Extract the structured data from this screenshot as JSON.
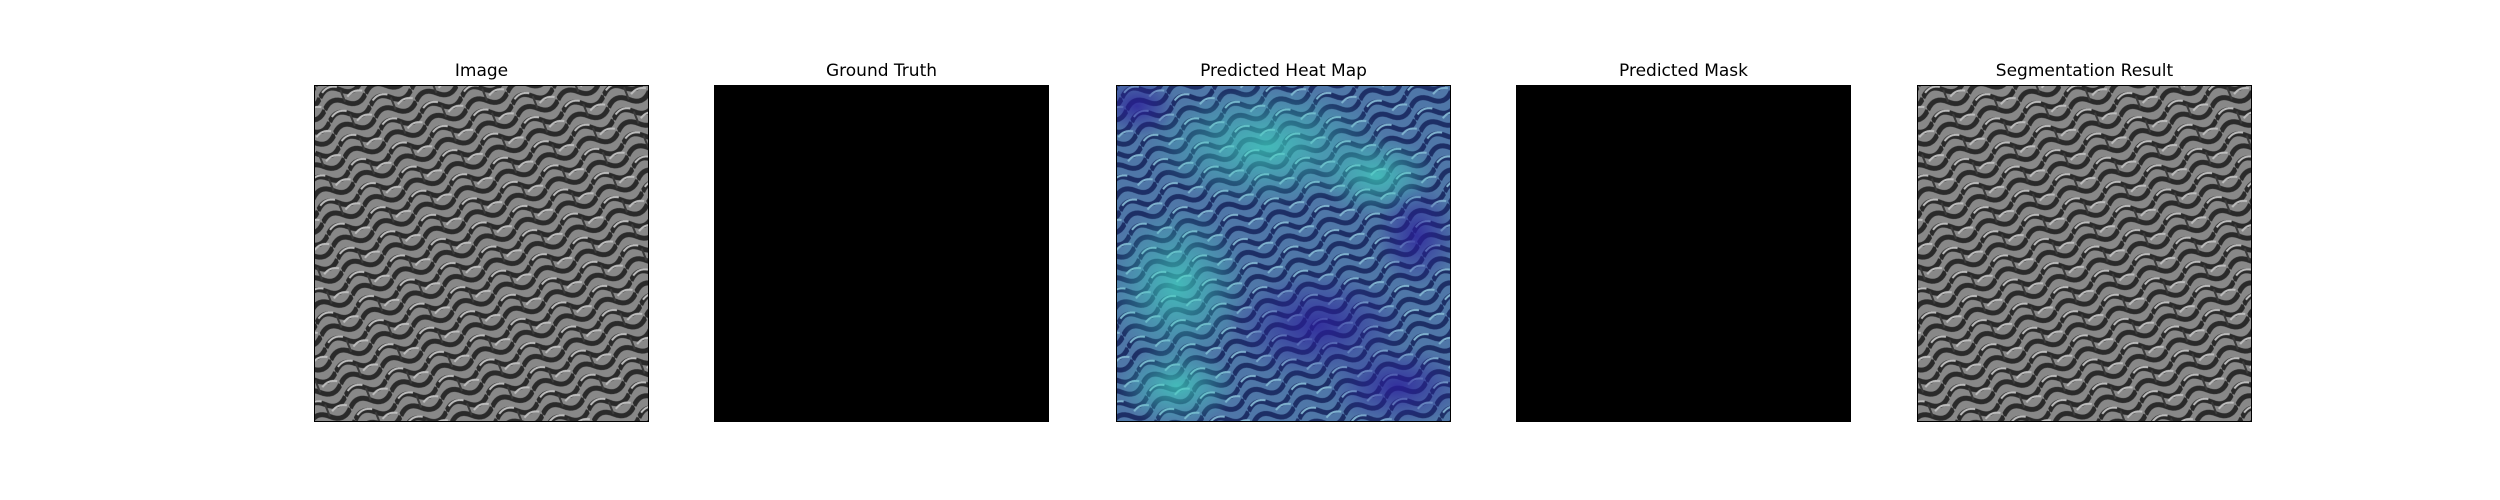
{
  "figure": {
    "panels": [
      {
        "id": "image",
        "title": "Image",
        "content": "fabric-texture"
      },
      {
        "id": "ground-truth",
        "title": "Ground Truth",
        "content": "black-mask"
      },
      {
        "id": "predicted-heat-map",
        "title": "Predicted Heat Map",
        "content": "heatmap-overlay"
      },
      {
        "id": "predicted-mask",
        "title": "Predicted Mask",
        "content": "black-mask"
      },
      {
        "id": "segmentation-result",
        "title": "Segmentation Result",
        "content": "fabric-texture"
      }
    ],
    "colors": {
      "background": "#ffffff",
      "mask": "#000000",
      "fabric_base": "#8a8a8a",
      "fabric_dark": "#2a2a2a",
      "heat_low": "#3a2f9e",
      "heat_high": "#35c0b0"
    }
  }
}
